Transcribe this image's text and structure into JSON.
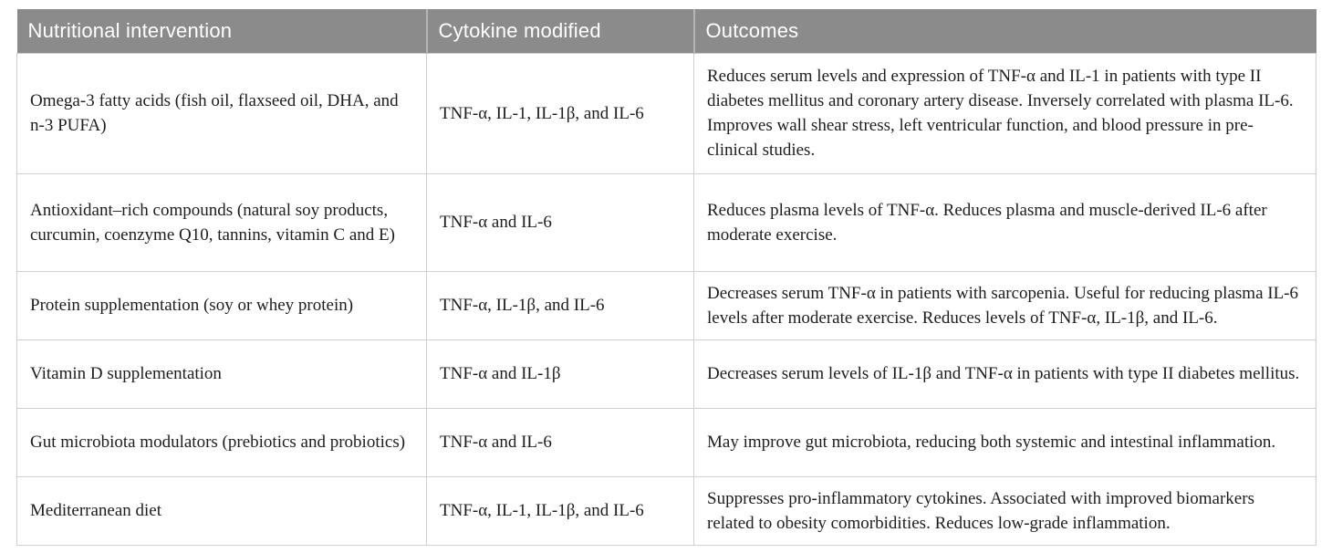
{
  "colors": {
    "header_bg": "#8b8b8b",
    "header_text": "#ffffff",
    "header_divider": "#b5b5b5",
    "row_border": "#cfcfcf",
    "body_text": "#1d1d1d"
  },
  "table": {
    "columns": [
      "Nutritional intervention",
      "Cytokine modified",
      "Outcomes"
    ],
    "rows": [
      {
        "intervention": "Omega-3 fatty acids (fish oil, flaxseed oil, DHA, and n-3 PUFA)",
        "cytokine": "TNF-α, IL-1, IL-1β, and IL-6",
        "outcomes": "Reduces serum levels and expression of TNF-α and IL-1 in patients with type II diabetes mellitus and coronary artery disease. Inversely correlated with plasma IL-6. Improves wall shear stress, left ventricular function, and blood pressure in pre-clinical studies."
      },
      {
        "intervention": "Antioxidant–rich compounds (natural soy products, curcumin, coenzyme Q10, tannins, vitamin C and E)",
        "cytokine": "TNF-α and IL-6",
        "outcomes": "Reduces plasma levels of TNF-α. Reduces plasma and muscle-derived IL-6 after moderate exercise."
      },
      {
        "intervention": "Protein supplementation (soy or whey protein)",
        "cytokine": "TNF-α, IL-1β, and IL-6",
        "outcomes": "Decreases serum TNF-α in patients with sarcopenia. Useful for reducing plasma IL-6 levels after moderate exercise. Reduces levels of TNF-α, IL-1β, and IL-6."
      },
      {
        "intervention": "Vitamin D supplementation",
        "cytokine": "TNF-α and IL-1β",
        "outcomes": "Decreases serum levels of IL-1β and TNF-α in patients with type II diabetes mellitus."
      },
      {
        "intervention": "Gut microbiota modulators (prebiotics and probiotics)",
        "cytokine": "TNF-α and IL-6",
        "outcomes": "May improve gut microbiota, reducing both systemic and intestinal inflammation."
      },
      {
        "intervention": "Mediterranean diet",
        "cytokine": "TNF-α, IL-1, IL-1β, and IL-6",
        "outcomes": "Suppresses pro-inflammatory cytokines. Associated with improved biomarkers related to obesity comorbidities. Reduces low-grade inflammation."
      }
    ]
  }
}
